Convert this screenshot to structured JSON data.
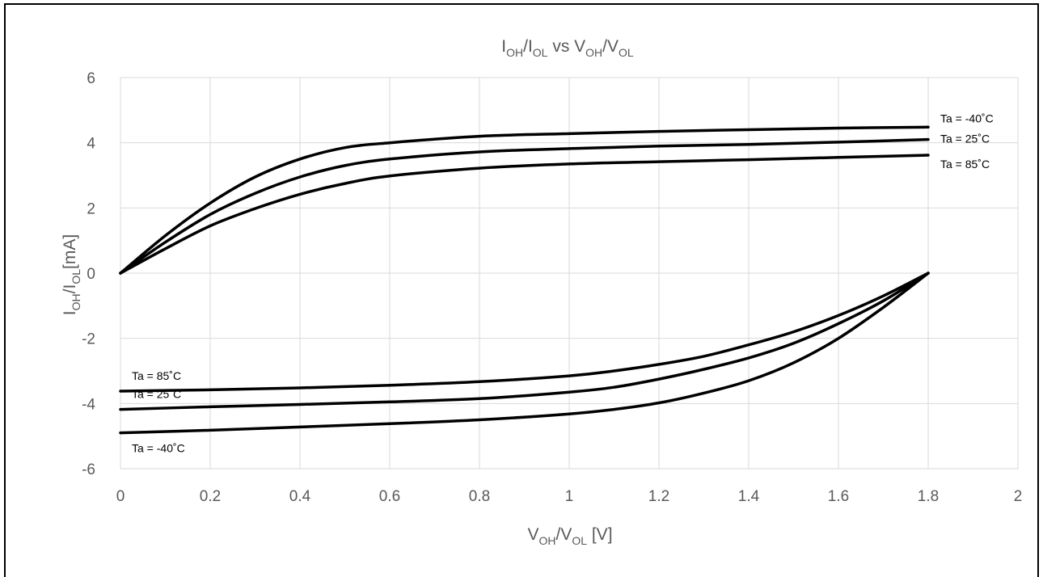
{
  "chart_data": {
    "type": "line",
    "title": {
      "main_a": "I",
      "sub_a": "OH",
      "sep_a": "/I",
      "sub_b": "OL",
      "vs": " vs V",
      "sub_c": "OH",
      "sep_b": "/V",
      "sub_d": "OL"
    },
    "xlabel": {
      "a": "V",
      "sub_a": "OH",
      "b": "/V",
      "sub_b": "OL",
      "c": " [V]"
    },
    "ylabel": {
      "a": "I",
      "sub_a": "OH",
      "b": "/I",
      "sub_b": "OL",
      "c": "[mA]"
    },
    "xlim": [
      0,
      2
    ],
    "ylim": [
      -6,
      6
    ],
    "xticks": [
      "0",
      "0.2",
      "0.4",
      "0.6",
      "0.8",
      "1",
      "1.2",
      "1.4",
      "1.6",
      "1.8",
      "2"
    ],
    "yticks": [
      "6",
      "4",
      "2",
      "0",
      "-2",
      "-4",
      "-6"
    ],
    "grid": true,
    "series": [
      {
        "name": "Ta = -40˚C",
        "group": "IOH",
        "x": [
          0,
          0.1,
          0.2,
          0.3,
          0.4,
          0.5,
          0.6,
          0.8,
          1.0,
          1.2,
          1.4,
          1.6,
          1.8
        ],
        "y": [
          0,
          1.15,
          2.15,
          2.95,
          3.5,
          3.85,
          4.0,
          4.2,
          4.28,
          4.35,
          4.4,
          4.45,
          4.48
        ]
      },
      {
        "name": "Ta = 25˚C",
        "group": "IOH",
        "x": [
          0,
          0.1,
          0.2,
          0.3,
          0.4,
          0.5,
          0.6,
          0.8,
          1.0,
          1.2,
          1.4,
          1.6,
          1.8
        ],
        "y": [
          0,
          0.95,
          1.8,
          2.45,
          2.95,
          3.3,
          3.5,
          3.72,
          3.82,
          3.9,
          3.95,
          4.02,
          4.1
        ]
      },
      {
        "name": "Ta = 85˚C",
        "group": "IOH",
        "x": [
          0,
          0.1,
          0.2,
          0.3,
          0.4,
          0.5,
          0.6,
          0.8,
          1.0,
          1.2,
          1.4,
          1.6,
          1.8
        ],
        "y": [
          0,
          0.75,
          1.45,
          1.98,
          2.42,
          2.75,
          2.98,
          3.22,
          3.35,
          3.42,
          3.48,
          3.55,
          3.62
        ]
      },
      {
        "name": "Ta = 85˚C",
        "group": "IOL",
        "x": [
          0,
          0.2,
          0.4,
          0.6,
          0.8,
          1.0,
          1.1,
          1.2,
          1.3,
          1.4,
          1.5,
          1.6,
          1.7,
          1.8
        ],
        "y": [
          -3.62,
          -3.58,
          -3.52,
          -3.44,
          -3.33,
          -3.15,
          -3.0,
          -2.8,
          -2.55,
          -2.2,
          -1.8,
          -1.3,
          -0.7,
          0
        ]
      },
      {
        "name": "Ta = 25˚C",
        "group": "IOL",
        "x": [
          0,
          0.2,
          0.4,
          0.6,
          0.8,
          1.0,
          1.1,
          1.2,
          1.3,
          1.4,
          1.5,
          1.6,
          1.7,
          1.8
        ],
        "y": [
          -4.18,
          -4.1,
          -4.03,
          -3.95,
          -3.85,
          -3.65,
          -3.5,
          -3.25,
          -2.95,
          -2.6,
          -2.15,
          -1.55,
          -0.85,
          0
        ]
      },
      {
        "name": "Ta = -40˚C",
        "group": "IOL",
        "x": [
          0,
          0.2,
          0.4,
          0.6,
          0.8,
          1.0,
          1.1,
          1.2,
          1.3,
          1.4,
          1.5,
          1.6,
          1.7,
          1.8
        ],
        "y": [
          -4.9,
          -4.82,
          -4.72,
          -4.62,
          -4.5,
          -4.32,
          -4.18,
          -3.98,
          -3.68,
          -3.3,
          -2.75,
          -2.0,
          -1.05,
          0
        ]
      }
    ]
  }
}
